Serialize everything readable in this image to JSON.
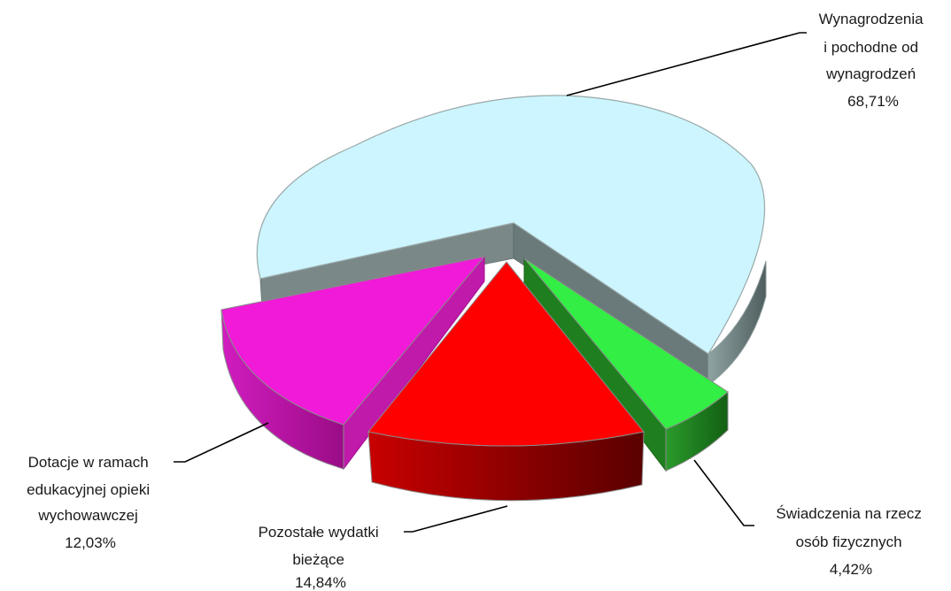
{
  "chart_data": {
    "type": "pie",
    "style": "3d-exploded",
    "slices": [
      {
        "label_lines": [
          "Wynagrodzenia",
          "i pochodne od",
          "wynagrodzeń"
        ],
        "value": 68.71,
        "value_label": "68,71%",
        "top_color": "#ccf5ff",
        "side_color": "#607070"
      },
      {
        "label_lines": [
          "Świadczenia na rzecz",
          "osób fizycznych"
        ],
        "value": 4.42,
        "value_label": "4,42%",
        "top_color": "#33ee44",
        "side_color": "#1a7a1a"
      },
      {
        "label_lines": [
          "Pozostałe wydatki",
          "bieżące"
        ],
        "value": 14.84,
        "value_label": "14,84%",
        "top_color": "#ff0000",
        "side_color": "#8a0000"
      },
      {
        "label_lines": [
          "Dotacje w ramach",
          "edukacyjnej opieki",
          "wychowawczej"
        ],
        "value": 12.03,
        "value_label": "12,03%",
        "top_color": "#f01ad8",
        "side_color": "#b0109a"
      }
    ]
  }
}
